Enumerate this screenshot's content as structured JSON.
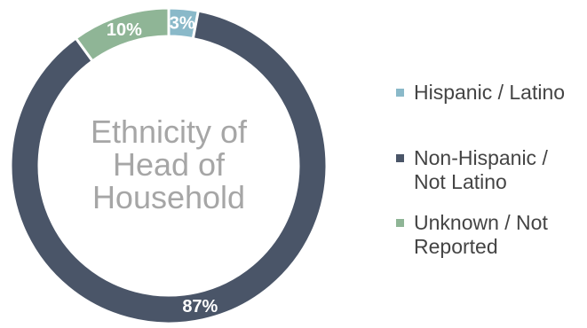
{
  "chart_data": {
    "type": "pie",
    "donut": true,
    "center_title": [
      "Ethnicity of",
      "Head of",
      "Household"
    ],
    "categories": [
      "Hispanic / Latino",
      "Non-Hispanic / Not Latino",
      "Unknown / Not Reported"
    ],
    "values": [
      3,
      87,
      10
    ],
    "data_labels": [
      "3%",
      "87%",
      "10%"
    ],
    "colors": [
      "#8ab9c9",
      "#4a5568",
      "#8fb596"
    ],
    "legend": {
      "position": "right",
      "items": [
        {
          "lines": [
            "Hispanic / Latino"
          ]
        },
        {
          "lines": [
            "Non-Hispanic /",
            "Not Latino"
          ]
        },
        {
          "lines": [
            "Unknown / Not",
            "Reported"
          ]
        }
      ]
    }
  }
}
